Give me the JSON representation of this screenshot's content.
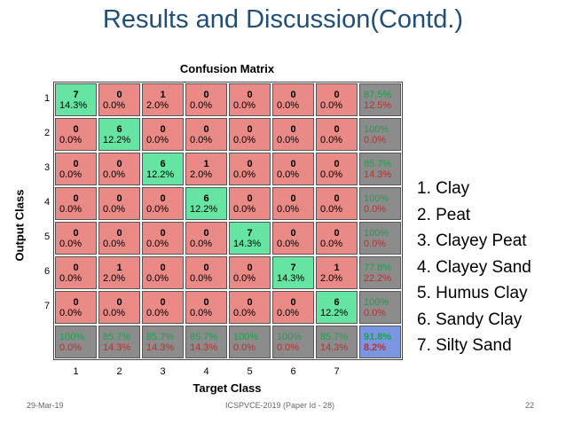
{
  "slide": {
    "title": "Results and Discussion(Contd.)",
    "footer_date": "29-Mar-19",
    "footer_center": "ICSPVCE-2019 (Paper Id - 28)",
    "footer_page": "22"
  },
  "legend": [
    "1. Clay",
    "2. Peat",
    "3. Clayey Peat",
    "4. Clayey Sand",
    "5. Humus Clay",
    "6. Sandy Clay",
    "7. Silty Sand"
  ],
  "colors": {
    "diag": "#66e4a1",
    "off": "#e98a87",
    "summary": "#8c8c8c",
    "total": "#7b95e0",
    "green_text": "#1aa34a",
    "red_text": "#b8312f"
  },
  "chart_data": {
    "type": "heatmap",
    "title": "Confusion Matrix",
    "xlabel": "Target Class",
    "ylabel": "Output Class",
    "col_ticks": [
      "1",
      "2",
      "3",
      "4",
      "5",
      "6",
      "7"
    ],
    "row_ticks": [
      "1",
      "2",
      "3",
      "4",
      "5",
      "6",
      "7"
    ],
    "counts": [
      [
        7,
        0,
        1,
        0,
        0,
        0,
        0
      ],
      [
        0,
        6,
        0,
        0,
        0,
        0,
        0
      ],
      [
        0,
        0,
        6,
        1,
        0,
        0,
        0
      ],
      [
        0,
        0,
        0,
        6,
        0,
        0,
        0
      ],
      [
        0,
        0,
        0,
        0,
        7,
        0,
        0
      ],
      [
        0,
        1,
        0,
        0,
        0,
        7,
        1
      ],
      [
        0,
        0,
        0,
        0,
        0,
        0,
        6
      ]
    ],
    "percents": [
      [
        "14.3%",
        "0.0%",
        "2.0%",
        "0.0%",
        "0.0%",
        "0.0%",
        "0.0%"
      ],
      [
        "0.0%",
        "12.2%",
        "0.0%",
        "0.0%",
        "0.0%",
        "0.0%",
        "0.0%"
      ],
      [
        "0.0%",
        "0.0%",
        "12.2%",
        "2.0%",
        "0.0%",
        "0.0%",
        "0.0%"
      ],
      [
        "0.0%",
        "0.0%",
        "0.0%",
        "12.2%",
        "0.0%",
        "0.0%",
        "0.0%"
      ],
      [
        "0.0%",
        "0.0%",
        "0.0%",
        "0.0%",
        "14.3%",
        "0.0%",
        "0.0%"
      ],
      [
        "0.0%",
        "2.0%",
        "0.0%",
        "0.0%",
        "0.0%",
        "14.3%",
        "2.0%"
      ],
      [
        "0.0%",
        "0.0%",
        "0.0%",
        "0.0%",
        "0.0%",
        "0.0%",
        "12.2%"
      ]
    ],
    "row_summary": [
      [
        "87.5%",
        "12.5%"
      ],
      [
        "100%",
        "0.0%"
      ],
      [
        "85.7%",
        "14.3%"
      ],
      [
        "100%",
        "0.0%"
      ],
      [
        "100%",
        "0.0%"
      ],
      [
        "77.8%",
        "22.2%"
      ],
      [
        "100%",
        "0.0%"
      ]
    ],
    "col_summary": [
      [
        "100%",
        "0.0%"
      ],
      [
        "85.7%",
        "14.3%"
      ],
      [
        "85.7%",
        "14.3%"
      ],
      [
        "85.7%",
        "14.3%"
      ],
      [
        "100%",
        "0.0%"
      ],
      [
        "100%",
        "0.0%"
      ],
      [
        "85.7%",
        "14.3%"
      ]
    ],
    "overall": [
      "91.8%",
      "8.2%"
    ]
  }
}
